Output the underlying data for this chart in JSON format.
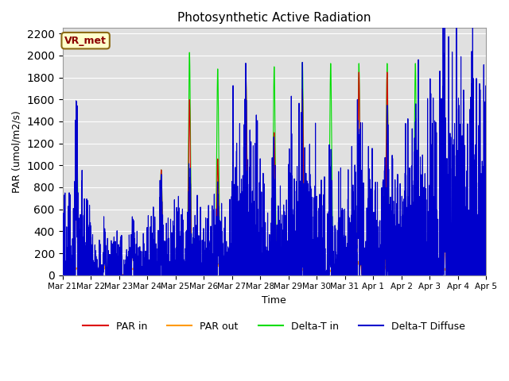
{
  "title": "Photosynthetic Active Radiation",
  "ylabel": "PAR (umol/m2/s)",
  "xlabel": "Time",
  "label_box": "VR_met",
  "label_box_color": "#ffffcc",
  "label_box_text_color": "#8B0000",
  "ylim": [
    0,
    2250
  ],
  "yticks": [
    0,
    200,
    400,
    600,
    800,
    1000,
    1200,
    1400,
    1600,
    1800,
    2000,
    2200
  ],
  "bg_color": "#e0e0e0",
  "legend_labels": [
    "PAR in",
    "PAR out",
    "Delta-T in",
    "Delta-T Diffuse"
  ],
  "legend_colors": [
    "#dd0000",
    "#ff9900",
    "#00dd00",
    "#0000cc"
  ],
  "n_days": 15,
  "points_per_day": 288,
  "tick_labels": [
    "Mar 21",
    "Mar 22",
    "Mar 23",
    "Mar 24",
    "Mar 25",
    "Mar 26",
    "Mar 27",
    "Mar 28",
    "Mar 29",
    "Mar 30",
    "Mar 31",
    "Apr 1",
    "Apr 2",
    "Apr 3",
    "Apr 4",
    "Apr 5"
  ]
}
